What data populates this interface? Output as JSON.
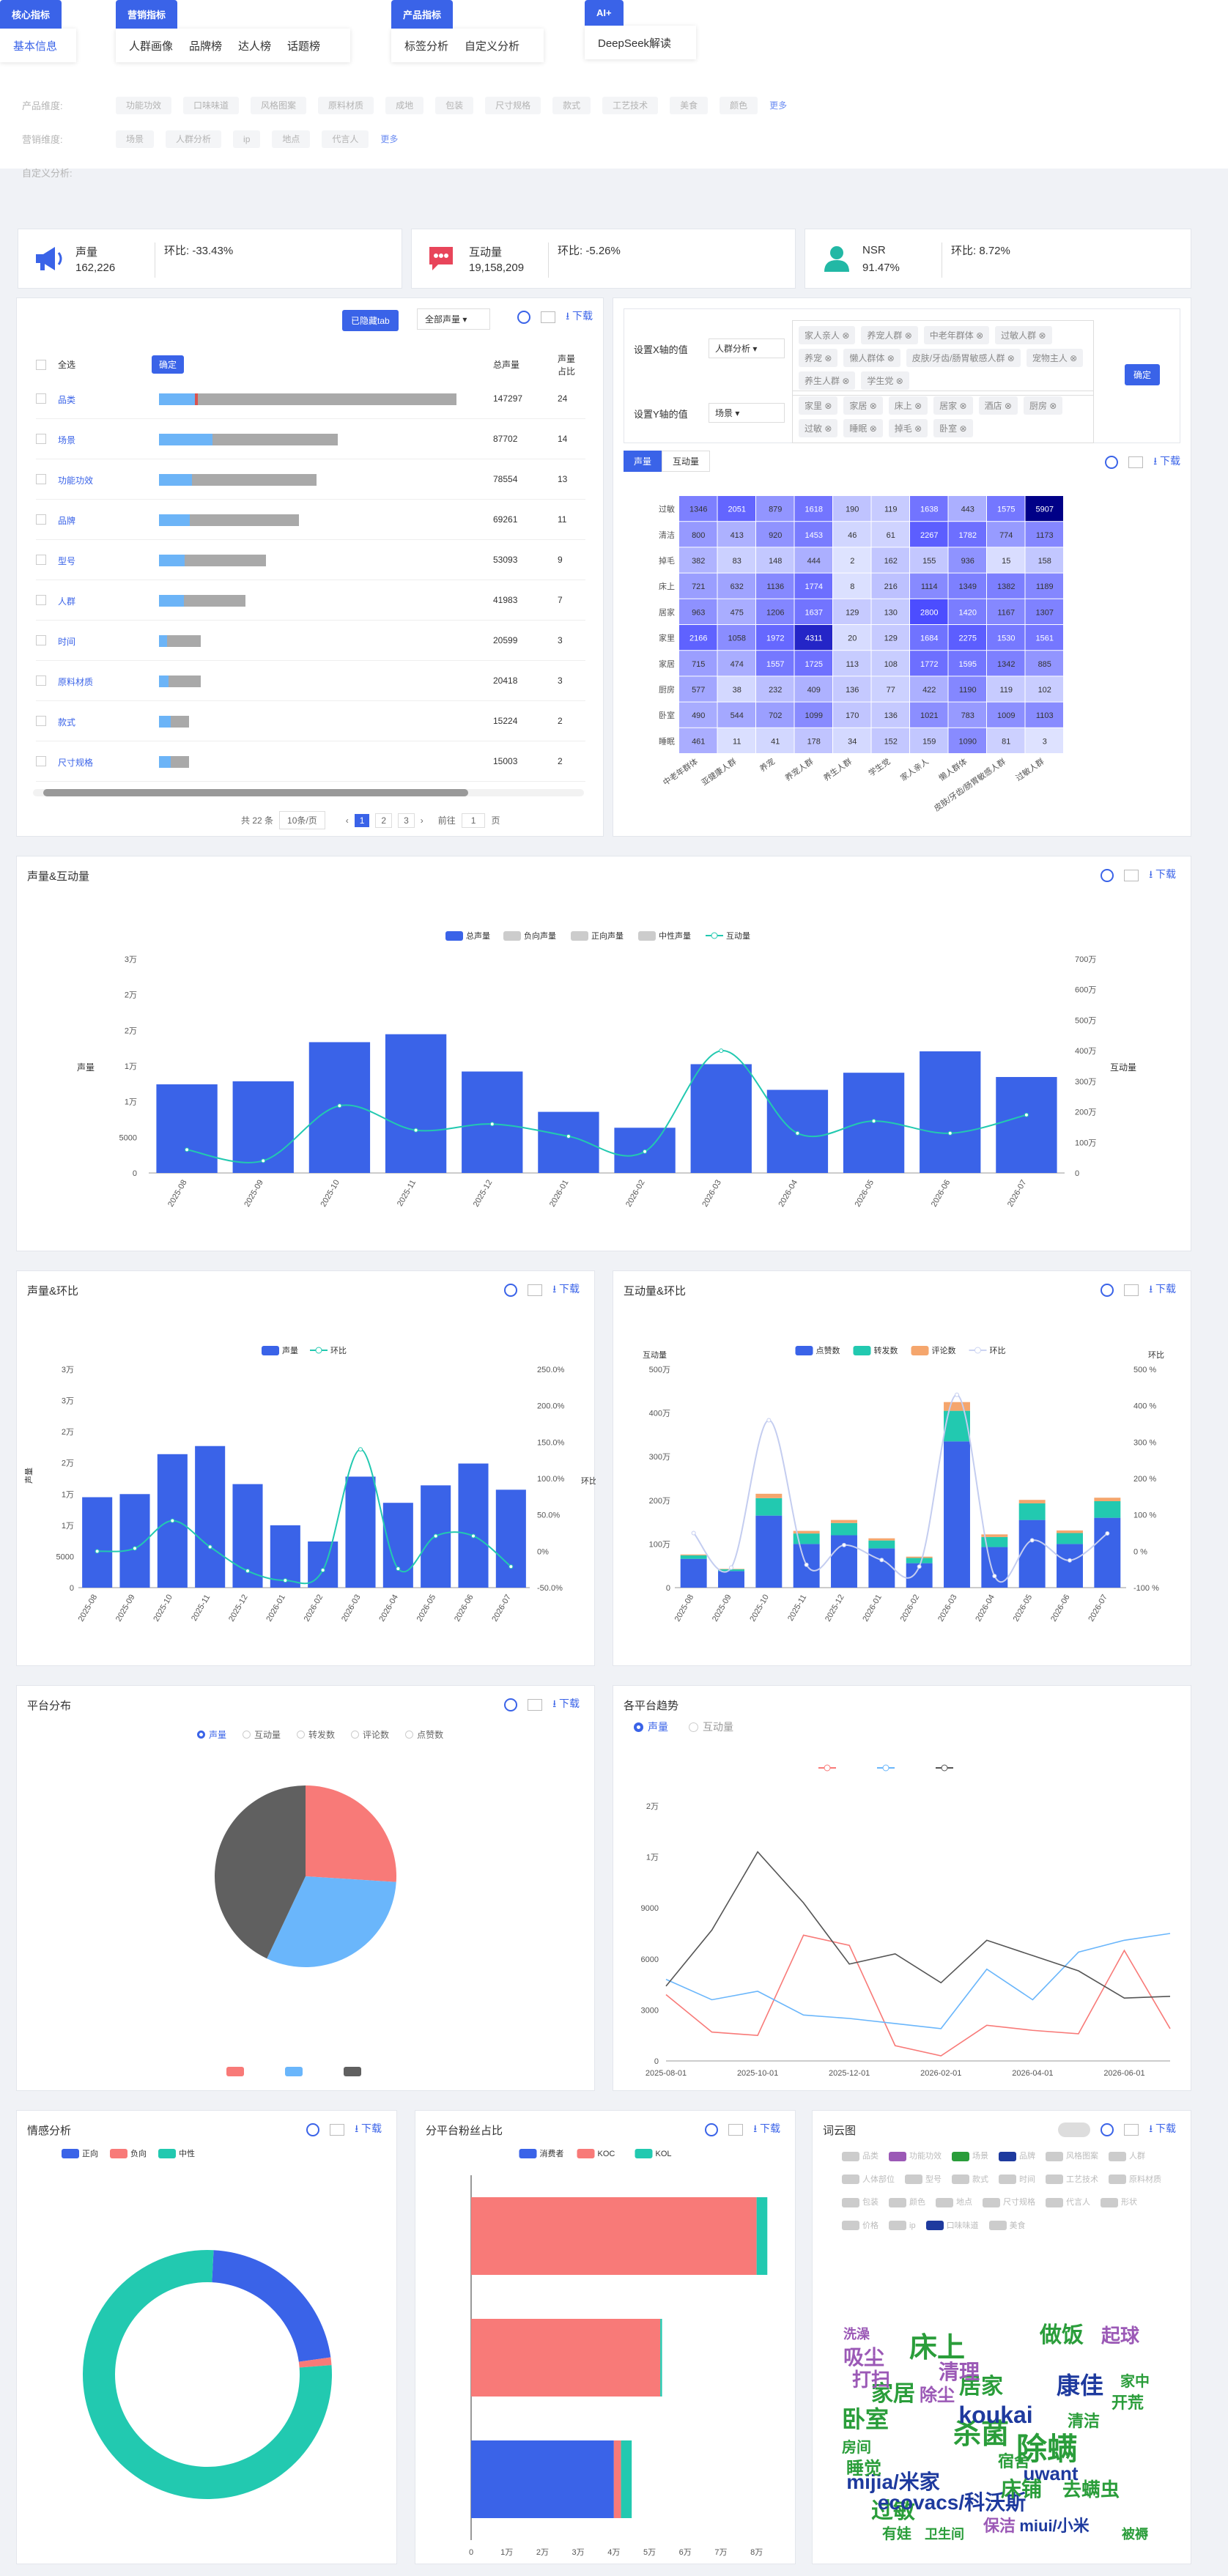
{
  "nav": {
    "groups": [
      {
        "label": "核心指标",
        "items": [
          "基本信息"
        ]
      },
      {
        "label": "营销指标",
        "items": [
          "人群画像",
          "品牌榜",
          "达人榜",
          "话题榜"
        ]
      },
      {
        "label": "产品指标",
        "items": [
          "标签分析",
          "自定义分析"
        ]
      },
      {
        "label": "AI+",
        "items": [
          "DeepSeek解读"
        ]
      }
    ]
  },
  "filters": {
    "product_label": "产品维度:",
    "product_tags": [
      "功能功效",
      "口味味道",
      "风格图案",
      "原料材质",
      "成地",
      "包装",
      "尺寸规格",
      "款式",
      "工艺技术",
      "美食",
      "颜色"
    ],
    "marketing_label": "营销维度:",
    "marketing_tags": [
      "场景",
      "人群分析",
      "ip",
      "地点",
      "代言人"
    ],
    "more": "更多",
    "custom_label": "自定义分析:"
  },
  "kpis": [
    {
      "name": "声量",
      "value": "162,226",
      "change": "环比: -33.43%"
    },
    {
      "name": "互动量",
      "value": "19,158,209",
      "change": "环比: -5.26%"
    },
    {
      "name": "NSR",
      "value": "91.47%",
      "change": "环比: 8.72%"
    }
  ],
  "tools": {
    "download": "下载"
  },
  "dimtable": {
    "hidden_btn": "已隐藏tab",
    "volume_select": "全部声量",
    "select_all": "全选",
    "confirm": "确定",
    "col_volume": "总声量",
    "col_share": "声量占比",
    "rows": [
      {
        "name": "品类",
        "volume": "147297",
        "share": "24",
        "ratio": 0.12,
        "total": 1.0
      },
      {
        "name": "场景",
        "volume": "87702",
        "share": "14",
        "ratio": 0.3,
        "total": 0.6
      },
      {
        "name": "功能功效",
        "volume": "78554",
        "share": "13",
        "ratio": 0.21,
        "total": 0.53
      },
      {
        "name": "品牌",
        "volume": "69261",
        "share": "11",
        "ratio": 0.22,
        "total": 0.47
      },
      {
        "name": "型号",
        "volume": "53093",
        "share": "9",
        "ratio": 0.24,
        "total": 0.36
      },
      {
        "name": "人群",
        "volume": "41983",
        "share": "7",
        "ratio": 0.29,
        "total": 0.29
      },
      {
        "name": "时间",
        "volume": "20599",
        "share": "3",
        "ratio": 0.2,
        "total": 0.14
      },
      {
        "name": "原料材质",
        "volume": "20418",
        "share": "3",
        "ratio": 0.22,
        "total": 0.14
      },
      {
        "name": "款式",
        "volume": "15224",
        "share": "2",
        "ratio": 0.4,
        "total": 0.1
      },
      {
        "name": "尺寸规格",
        "volume": "15003",
        "share": "2",
        "ratio": 0.4,
        "total": 0.1
      }
    ],
    "pager": {
      "total": "共 22 条",
      "size": "10条/页",
      "pages": [
        "1",
        "2",
        "3"
      ],
      "goto": "前往",
      "page": "1",
      "unit": "页"
    }
  },
  "heat": {
    "x_label": "设置X轴的值",
    "x_select": "人群分析",
    "x_tags": [
      "家人亲人",
      "养宠人群",
      "中老年群体",
      "过敏人群",
      "养宠",
      "懒人群体",
      "皮肤/牙齿/肠胃敏感人群",
      "宠物主人",
      "养生人群",
      "学生党"
    ],
    "y_label": "设置Y轴的值",
    "y_select": "场景",
    "y_tags": [
      "家里",
      "家居",
      "床上",
      "居家",
      "酒店",
      "厨房",
      "过敏",
      "睡眠",
      "掉毛",
      "卧室"
    ],
    "confirm": "确定",
    "tabs": [
      "声量",
      "互动量"
    ],
    "rows": [
      "过敏",
      "清洁",
      "掉毛",
      "床上",
      "居家",
      "家里",
      "家居",
      "厨房",
      "卧室",
      "睡眠"
    ],
    "cols": [
      "中老年群体",
      "亚健康人群",
      "养宠",
      "养宠人群",
      "养生人群",
      "学生党",
      "家人亲人",
      "懒人群体",
      "皮肤/牙齿/肠胃敏感人群",
      "过敏人群"
    ],
    "values": [
      [
        1346,
        2051,
        879,
        1618,
        190,
        119,
        1638,
        443,
        1575,
        5907
      ],
      [
        800,
        413,
        920,
        1453,
        46,
        61,
        2267,
        1782,
        774,
        1173
      ],
      [
        382,
        83,
        148,
        444,
        2,
        162,
        155,
        936,
        15,
        158
      ],
      [
        721,
        632,
        1136,
        1774,
        8,
        216,
        1114,
        1349,
        1382,
        1189
      ],
      [
        963,
        475,
        1206,
        1637,
        129,
        130,
        2800,
        1420,
        1167,
        1307
      ],
      [
        2166,
        1058,
        1972,
        4311,
        20,
        129,
        1684,
        2275,
        1530,
        1561
      ],
      [
        715,
        474,
        1557,
        1725,
        113,
        108,
        1772,
        1595,
        1342,
        885
      ],
      [
        577,
        38,
        232,
        409,
        136,
        77,
        422,
        1190,
        119,
        102
      ],
      [
        490,
        544,
        702,
        1099,
        170,
        136,
        1021,
        783,
        1009,
        1103
      ],
      [
        461,
        11,
        41,
        178,
        34,
        152,
        159,
        1090,
        81,
        3
      ]
    ]
  },
  "vi": {
    "title": "声量&互动量",
    "legend": [
      "总声量",
      "负向声量",
      "正向声量",
      "中性声量",
      "互动量"
    ],
    "ylabel_left": "声量",
    "ylabel_right": "互动量",
    "chart_data": {
      "type": "bar",
      "categories": [
        "2025-08",
        "2025-09",
        "2025-10",
        "2025-11",
        "2025-12",
        "2026-01",
        "2026-02",
        "2026-03",
        "2026-04",
        "2026-05",
        "2026-06",
        "2026-07"
      ],
      "series": [
        {
          "name": "总声量",
          "values": [
            14500,
            15000,
            21400,
            22700,
            16600,
            10000,
            7400,
            17800,
            13600,
            16400,
            19900,
            15700
          ]
        },
        {
          "name": "互动量",
          "values": [
            760000,
            400000,
            2200000,
            1400000,
            1600000,
            1200000,
            700000,
            4000000,
            1300000,
            1700000,
            1300000,
            1900000
          ]
        }
      ],
      "ylim": [
        0,
        35000
      ],
      "y2lim": [
        0,
        7000000
      ]
    },
    "yticks": [
      "0",
      "5000",
      "1万",
      "1万",
      "2万",
      "2万",
      "3万"
    ],
    "y2ticks": [
      "0",
      "100万",
      "200万",
      "300万",
      "400万",
      "500万",
      "600万",
      "700万"
    ]
  },
  "vc": {
    "title": "声量&环比",
    "legend": [
      "声量",
      "环比"
    ],
    "ylabel": "声量",
    "ylabel_right": "环比",
    "chart_data": {
      "type": "bar",
      "categories": [
        "2025-08",
        "2025-09",
        "2025-10",
        "2025-11",
        "2025-12",
        "2026-01",
        "2026-02",
        "2026-03",
        "2026-04",
        "2026-05",
        "2026-06",
        "2026-07"
      ],
      "series": [
        {
          "name": "声量",
          "values": [
            14500,
            15000,
            21400,
            22700,
            16600,
            10000,
            7400,
            17800,
            13600,
            16400,
            19900,
            15700
          ]
        },
        {
          "name": "环比",
          "values": [
            0,
            4,
            42,
            6,
            -27,
            -40,
            -26,
            140,
            -24,
            21,
            21,
            -21
          ]
        }
      ],
      "ylim": [
        0,
        35000
      ],
      "y2lim": [
        -50,
        250
      ]
    },
    "yticks": [
      "0",
      "5000",
      "1万",
      "1万",
      "2万",
      "2万",
      "3万",
      "3万"
    ],
    "y2ticks": [
      "-50.0%",
      "0%",
      "50.0%",
      "100.0%",
      "150.0%",
      "200.0%",
      "250.0%"
    ]
  },
  "ic": {
    "title": "互动量&环比",
    "legend": [
      "点赞数",
      "转发数",
      "评论数",
      "环比"
    ],
    "ylabel": "互动量",
    "ylabel_right": "环比",
    "chart_data": {
      "type": "bar",
      "categories": [
        "2025-08",
        "2025-09",
        "2025-10",
        "2025-11",
        "2025-12",
        "2026-01",
        "2026-02",
        "2026-03",
        "2026-04",
        "2026-05",
        "2026-06",
        "2026-07"
      ],
      "series": [
        {
          "name": "点赞数",
          "values": [
            660000,
            380000,
            1650000,
            1000000,
            1200000,
            900000,
            560000,
            3350000,
            930000,
            1550000,
            1000000,
            1600000
          ]
        },
        {
          "name": "转发数",
          "values": [
            80000,
            40000,
            400000,
            240000,
            280000,
            180000,
            120000,
            700000,
            230000,
            380000,
            250000,
            380000
          ]
        },
        {
          "name": "评论数",
          "values": [
            20000,
            10000,
            100000,
            60000,
            70000,
            50000,
            30000,
            200000,
            60000,
            80000,
            60000,
            80000
          ]
        },
        {
          "name": "环比",
          "values": [
            50,
            -45,
            360,
            -37,
            17,
            -24,
            -42,
            430,
            -68,
            30,
            -25,
            49
          ]
        }
      ],
      "ylim": [
        0,
        5000000
      ],
      "y2lim": [
        -100,
        500
      ]
    },
    "yticks": [
      "0",
      "100万",
      "200万",
      "300万",
      "400万",
      "500万"
    ],
    "y2ticks": [
      "-100 %",
      "0 %",
      "100 %",
      "200 %",
      "300 %",
      "400 %",
      "500 %"
    ]
  },
  "pf": {
    "title": "平台分布",
    "radios": [
      "声量",
      "互动量",
      "转发数",
      "评论数",
      "点赞数"
    ],
    "chart_data": {
      "type": "pie",
      "values": [
        26,
        31,
        43
      ],
      "colors": [
        "#f87a78",
        "#6ab6fb",
        "#606060"
      ]
    }
  },
  "pt": {
    "title": "各平台趋势",
    "radios": [
      "声量",
      "互动量"
    ],
    "chart_data": {
      "type": "line",
      "x": [
        "2025-08-01",
        "2025-09-01",
        "2025-10-01",
        "2025-11-01",
        "2025-12-01",
        "2026-01-01",
        "2026-02-01",
        "2026-03-01",
        "2026-04-01",
        "2026-05-01",
        "2026-06-01",
        "2026-07-01"
      ],
      "series": [
        {
          "values": [
            3900,
            1700,
            1500,
            7400,
            6800,
            900,
            300,
            2100,
            1800,
            1600,
            6500,
            1900
          ],
          "color": "#f87a78"
        },
        {
          "values": [
            4800,
            3600,
            4100,
            2700,
            2500,
            2200,
            1900,
            5400,
            3600,
            6400,
            7100,
            7500
          ],
          "color": "#6ab6fb"
        },
        {
          "values": [
            4400,
            7700,
            13700,
            9400,
            5700,
            6300,
            4600,
            7100,
            6200,
            5300,
            3700,
            3800
          ],
          "color": "#555555"
        }
      ],
      "ylim": [
        0,
        20000
      ]
    },
    "yticks": [
      "0",
      "3000",
      "6000",
      "9000",
      "1万",
      "2万"
    ],
    "xticks": [
      "2025-08-01",
      "2025-10-01",
      "2025-12-01",
      "2026-02-01",
      "2026-04-01",
      "2026-06-01"
    ]
  },
  "se": {
    "title": "情感分析",
    "legend": [
      "正向",
      "负向",
      "中性"
    ],
    "chart_data": {
      "type": "pie",
      "values": [
        22,
        1,
        77
      ],
      "colors": [
        "#3a63e8",
        "#f87a78",
        "#22c9b0"
      ]
    }
  },
  "fr": {
    "title": "分平台粉丝占比",
    "legend": [
      "消费者",
      "KOC",
      "KOL"
    ],
    "chart_data": {
      "type": "bar",
      "series": [
        {
          "name": "消费者",
          "values": [
            0,
            0,
            4
          ]
        },
        {
          "name": "KOC",
          "values": [
            8,
            5.3,
            0.2
          ]
        },
        {
          "name": "KOL",
          "values": [
            0.3,
            0.05,
            0.3
          ]
        }
      ],
      "xlim": [
        0,
        8.5
      ]
    },
    "xticks": [
      "0",
      "1万",
      "2万",
      "3万",
      "4万",
      "5万",
      "6万",
      "7万",
      "8万"
    ]
  },
  "wc": {
    "title": "词云图",
    "tags": [
      "品类",
      "功能功效",
      "场景",
      "品牌",
      "风格图案",
      "人群",
      "人体部位",
      "型号",
      "款式",
      "时间",
      "工艺技术",
      "原料材质",
      "包装",
      "颜色",
      "地点",
      "尺寸规格",
      "代言人",
      "形状",
      "价格",
      "ip",
      "口味味道",
      "美食"
    ],
    "active": [
      {
        "name": "功能功效",
        "color": "#9b59b6"
      },
      {
        "name": "场景",
        "color": "#2a9d3a"
      },
      {
        "name": "品牌",
        "color": "#1e3a9e"
      },
      {
        "name": "口味味道",
        "color": "#1e3a9e"
      }
    ],
    "words": [
      {
        "t": "床上",
        "c": "#2a9d3a",
        "s": 38,
        "x": 150,
        "y": 150
      },
      {
        "t": "做饭",
        "c": "#2a9d3a",
        "s": 30,
        "x": 320,
        "y": 130
      },
      {
        "t": "除螨",
        "c": "#2a9d3a",
        "s": 42,
        "x": 300,
        "y": 290
      },
      {
        "t": "杀菌",
        "c": "#2a9d3a",
        "s": 38,
        "x": 210,
        "y": 268
      },
      {
        "t": "卧室",
        "c": "#2a9d3a",
        "s": 32,
        "x": 52,
        "y": 246
      },
      {
        "t": "家居",
        "c": "#2a9d3a",
        "s": 30,
        "x": 90,
        "y": 210
      },
      {
        "t": "居家",
        "c": "#2a9d3a",
        "s": 30,
        "x": 210,
        "y": 200
      },
      {
        "t": "过敏",
        "c": "#2a9d3a",
        "s": 30,
        "x": 90,
        "y": 370
      },
      {
        "t": "koukai",
        "c": "#1e3a9e",
        "s": 32,
        "x": 230,
        "y": 240
      },
      {
        "t": "康佳",
        "c": "#1e3a9e",
        "s": 32,
        "x": 345,
        "y": 200
      },
      {
        "t": "mijia/米家",
        "c": "#1e3a9e",
        "s": 28,
        "x": 90,
        "y": 330
      },
      {
        "t": "ecovacs/科沃斯",
        "c": "#1e3a9e",
        "s": 28,
        "x": 170,
        "y": 358
      },
      {
        "t": "uwant",
        "c": "#1e3a9e",
        "s": 26,
        "x": 305,
        "y": 318
      },
      {
        "t": "吸尘",
        "c": "#9b59b6",
        "s": 28,
        "x": 50,
        "y": 160
      },
      {
        "t": "床铺",
        "c": "#2a9d3a",
        "s": 28,
        "x": 265,
        "y": 340
      },
      {
        "t": "去螨虫",
        "c": "#2a9d3a",
        "s": 26,
        "x": 360,
        "y": 340
      },
      {
        "t": "清理",
        "c": "#9b59b6",
        "s": 28,
        "x": 180,
        "y": 180
      },
      {
        "t": "打扫",
        "c": "#9b59b6",
        "s": 26,
        "x": 60,
        "y": 190
      },
      {
        "t": "起球",
        "c": "#9b59b6",
        "s": 26,
        "x": 400,
        "y": 130
      },
      {
        "t": "宿舍",
        "c": "#2a9d3a",
        "s": 22,
        "x": 255,
        "y": 300
      },
      {
        "t": "保洁",
        "c": "#9b59b6",
        "s": 22,
        "x": 235,
        "y": 388
      },
      {
        "t": "miui/小米",
        "c": "#1e3a9e",
        "s": 22,
        "x": 310,
        "y": 388
      },
      {
        "t": "睡觉",
        "c": "#2a9d3a",
        "s": 24,
        "x": 50,
        "y": 310
      },
      {
        "t": "房间",
        "c": "#2a9d3a",
        "s": 20,
        "x": 40,
        "y": 280
      },
      {
        "t": "除尘",
        "c": "#9b59b6",
        "s": 24,
        "x": 150,
        "y": 210
      },
      {
        "t": "清洁",
        "c": "#2a9d3a",
        "s": 22,
        "x": 350,
        "y": 245
      },
      {
        "t": "有娃",
        "c": "#2a9d3a",
        "s": 20,
        "x": 95,
        "y": 398
      },
      {
        "t": "卫生间",
        "c": "#2a9d3a",
        "s": 18,
        "x": 160,
        "y": 398
      },
      {
        "t": "开荒",
        "c": "#2a9d3a",
        "s": 22,
        "x": 410,
        "y": 220
      },
      {
        "t": "家中",
        "c": "#2a9d3a",
        "s": 20,
        "x": 420,
        "y": 190
      },
      {
        "t": "洗澡",
        "c": "#9b59b6",
        "s": 18,
        "x": 40,
        "y": 125
      },
      {
        "t": "被褥",
        "c": "#2a9d3a",
        "s": 18,
        "x": 420,
        "y": 398
      }
    ]
  }
}
